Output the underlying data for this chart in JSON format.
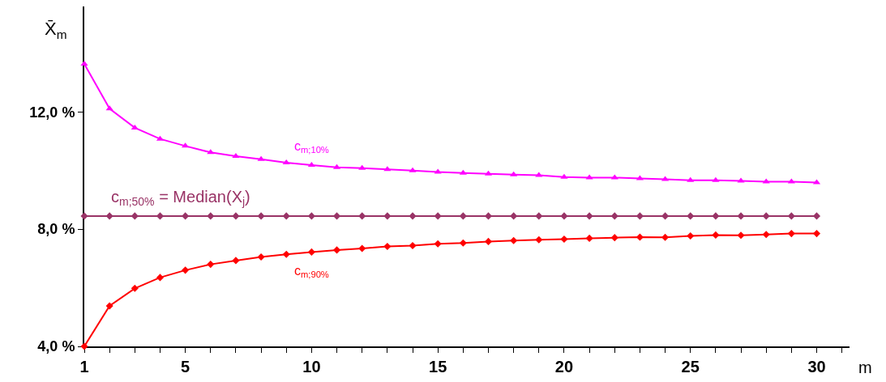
{
  "chart_data": {
    "type": "line",
    "ylabel": "X̄$_{m}$",
    "xlabel": "m",
    "x": [
      1,
      2,
      3,
      4,
      5,
      6,
      7,
      8,
      9,
      10,
      11,
      12,
      13,
      14,
      15,
      16,
      17,
      18,
      19,
      20,
      21,
      22,
      23,
      24,
      25,
      26,
      27,
      28,
      29,
      30
    ],
    "series": [
      {
        "name": "c$_{m;10%}$",
        "color": "#ff00ff",
        "marker": "triangle",
        "values": [
          13.64,
          12.11,
          11.46,
          11.08,
          10.84,
          10.62,
          10.49,
          10.39,
          10.27,
          10.19,
          10.11,
          10.08,
          10.04,
          10.0,
          9.95,
          9.92,
          9.89,
          9.86,
          9.84,
          9.78,
          9.76,
          9.76,
          9.73,
          9.7,
          9.67,
          9.67,
          9.65,
          9.62,
          9.62,
          9.59
        ]
      },
      {
        "name": "c$_{m;50%}$ = Median(X$_{j}$)",
        "color": "#993366",
        "marker": "diamond",
        "values": [
          8.45,
          8.45,
          8.45,
          8.45,
          8.45,
          8.45,
          8.45,
          8.45,
          8.45,
          8.45,
          8.45,
          8.45,
          8.45,
          8.45,
          8.45,
          8.45,
          8.45,
          8.45,
          8.45,
          8.45,
          8.45,
          8.45,
          8.45,
          8.45,
          8.45,
          8.45,
          8.45,
          8.45,
          8.45,
          8.45
        ]
      },
      {
        "name": "c$_{m;90%}$",
        "color": "#ff0000",
        "marker": "diamond",
        "values": [
          4.0,
          5.38,
          5.98,
          6.35,
          6.6,
          6.8,
          6.93,
          7.05,
          7.14,
          7.22,
          7.29,
          7.34,
          7.41,
          7.44,
          7.5,
          7.53,
          7.58,
          7.61,
          7.64,
          7.66,
          7.69,
          7.71,
          7.73,
          7.72,
          7.77,
          7.8,
          7.79,
          7.82,
          7.85,
          7.85
        ]
      }
    ],
    "xlim": [
      1,
      31.3
    ],
    "xticks": [
      1,
      {
        "value": 2,
        "label": null
      },
      {
        "value": 3,
        "label": null
      },
      {
        "value": 4,
        "label": null
      },
      5,
      {
        "value": 6,
        "label": null
      },
      {
        "value": 7,
        "label": null
      },
      {
        "value": 8,
        "label": null
      },
      {
        "value": 9,
        "label": null
      },
      10,
      {
        "value": 11,
        "label": null
      },
      {
        "value": 12,
        "label": null
      },
      {
        "value": 13,
        "label": null
      },
      {
        "value": 14,
        "label": null
      },
      15,
      {
        "value": 16,
        "label": null
      },
      {
        "value": 17,
        "label": null
      },
      {
        "value": 18,
        "label": null
      },
      {
        "value": 19,
        "label": null
      },
      20,
      {
        "value": 21,
        "label": null
      },
      {
        "value": 22,
        "label": null
      },
      {
        "value": 23,
        "label": null
      },
      {
        "value": 24,
        "label": null
      },
      25,
      {
        "value": 26,
        "label": null
      },
      {
        "value": 27,
        "label": null
      },
      {
        "value": 28,
        "label": null
      },
      {
        "value": 29,
        "label": null
      },
      30,
      {
        "value": 31,
        "label": null
      }
    ],
    "ylim": [
      4,
      15.6
    ],
    "yticks": [
      {
        "value": 4,
        "label": "4,0 %"
      },
      {
        "value": 8,
        "label": "8,0 %"
      },
      {
        "value": 12,
        "label": "12,0 %"
      }
    ],
    "line_style": "solid"
  }
}
